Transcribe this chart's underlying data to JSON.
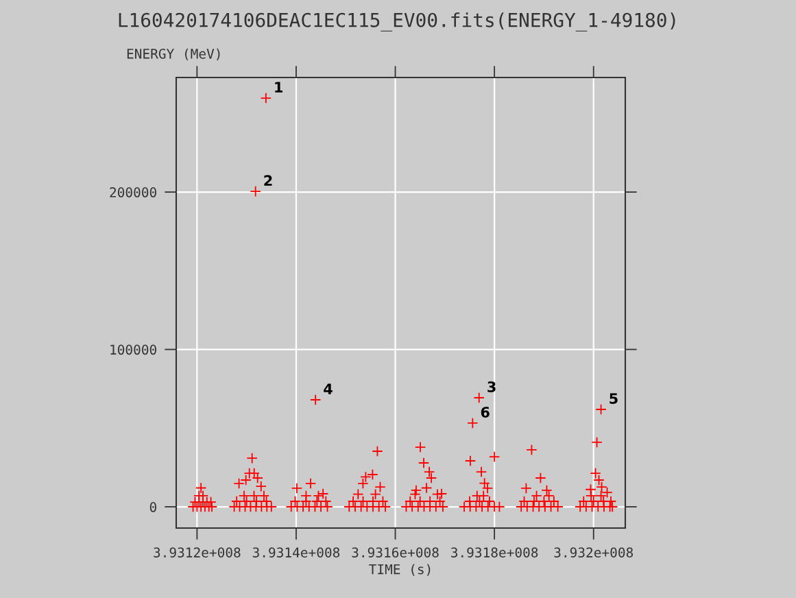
{
  "chart_data": {
    "type": "scatter",
    "title": "L160420174106DEAC1EC115_EV00.fits(ENERGY_1-49180)",
    "xlabel": "TIME (s)",
    "ylabel": "ENERGY (MeV)",
    "xlim": [
      393115800,
      393206400
    ],
    "ylim": [
      -13500,
      272800
    ],
    "xticks": [
      {
        "value": 393120000,
        "label": "3.9312e+008"
      },
      {
        "value": 393140000,
        "label": "3.9314e+008"
      },
      {
        "value": 393160000,
        "label": "3.9316e+008"
      },
      {
        "value": 393180000,
        "label": "3.9318e+008"
      },
      {
        "value": 393200000,
        "label": "3.932e+008"
      }
    ],
    "yticks": [
      0,
      100000,
      200000
    ],
    "grid": true,
    "marker": "cross",
    "series": [
      {
        "color": "#ff0000",
        "x": [
          393119200,
          393120000,
          393120800,
          393121600,
          393122400,
          393123000,
          393119600,
          393120400,
          393121200,
          393122000,
          393122800,
          393120400,
          393121200,
          393120800,
          393127500,
          393128600,
          393129700,
          393130800,
          393131900,
          393133000,
          393134100,
          393135000,
          393128000,
          393130000,
          393132000,
          393134000,
          393129500,
          393131500,
          393133500,
          393128470,
          393129860,
          393130560,
          393131110,
          393131530,
          393132220,
          393132920,
          393133900,
          393131800,
          393139000,
          393140200,
          393141400,
          393142600,
          393143800,
          393145000,
          393146300,
          393139800,
          393142000,
          393144200,
          393146000,
          393142000,
          393144500,
          393140140,
          393142920,
          393145420,
          393143900,
          393150700,
          393151900,
          393153100,
          393154300,
          393155500,
          393156700,
          393158000,
          393151500,
          393153500,
          393155500,
          393157500,
          393152500,
          393156000,
          393153480,
          393154030,
          393155420,
          393156390,
          393156950,
          393162200,
          393163400,
          393164600,
          393165800,
          393167000,
          393168200,
          393169600,
          393163000,
          393165000,
          393167000,
          393169000,
          393164000,
          393168500,
          393164210,
          393165050,
          393165740,
          393166850,
          393167270,
          393166300,
          393169340,
          393173900,
          393175100,
          393176300,
          393177500,
          393178700,
          393180000,
          393181000,
          393175000,
          393177000,
          393179000,
          393176500,
          393177800,
          393175140,
          393177360,
          393180000,
          393178610,
          393178000,
          393176900,
          393175600,
          393185400,
          393186600,
          393187800,
          393189000,
          393190200,
          393191400,
          393192800,
          393186000,
          393188000,
          393190000,
          393192000,
          393188500,
          393191000,
          393187510,
          393189310,
          393186400,
          393190560,
          393197300,
          393198500,
          393199700,
          393200900,
          393202100,
          393203300,
          393203800,
          393198000,
          393200000,
          393202000,
          393203500,
          393199500,
          393201500,
          393200670,
          393200390,
          393201080,
          393201640,
          393202740,
          393199420,
          393201500
        ],
        "values": [
          0,
          0,
          0,
          0,
          0,
          0,
          3000,
          3000,
          3000,
          3000,
          3000,
          7000,
          7000,
          12000,
          0,
          0,
          0,
          0,
          0,
          0,
          0,
          0,
          3500,
          3500,
          3500,
          3500,
          7000,
          7000,
          7000,
          14800,
          17000,
          21300,
          30900,
          21300,
          18300,
          13000,
          259700,
          200400,
          0,
          0,
          0,
          0,
          0,
          0,
          0,
          3500,
          3500,
          3500,
          3500,
          7000,
          7000,
          11800,
          14800,
          8300,
          68000,
          0,
          0,
          0,
          0,
          0,
          0,
          0,
          3500,
          3500,
          3500,
          3500,
          8000,
          8000,
          14800,
          19000,
          20500,
          35300,
          12600,
          0,
          0,
          0,
          0,
          0,
          0,
          0,
          3500,
          3500,
          3500,
          3500,
          8000,
          8000,
          10500,
          37900,
          27900,
          22200,
          18300,
          12000,
          8300,
          0,
          0,
          0,
          0,
          0,
          0,
          0,
          3500,
          3500,
          3500,
          7000,
          7000,
          29200,
          22200,
          31800,
          11800,
          15000,
          69300,
          53200,
          0,
          0,
          0,
          0,
          0,
          0,
          0,
          3500,
          3500,
          3500,
          3500,
          7000,
          7000,
          36200,
          18300,
          11800,
          10500,
          0,
          0,
          0,
          0,
          0,
          0,
          0,
          3500,
          3500,
          3500,
          3500,
          7000,
          7000,
          41000,
          21300,
          17000,
          12600,
          9100,
          11000,
          61900
        ]
      }
    ],
    "annotations": [
      {
        "text": "1",
        "x": 393133900,
        "y": 259700
      },
      {
        "text": "2",
        "x": 393131800,
        "y": 200400
      },
      {
        "text": "3",
        "x": 393176900,
        "y": 69300
      },
      {
        "text": "4",
        "x": 393143900,
        "y": 68000
      },
      {
        "text": "5",
        "x": 393201500,
        "y": 61900
      },
      {
        "text": "6",
        "x": 393175600,
        "y": 53200
      }
    ]
  }
}
